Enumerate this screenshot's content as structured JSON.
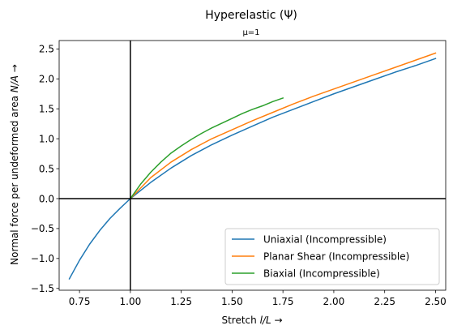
{
  "chart_data": {
    "type": "line",
    "title": "Hyperelastic (Ψ)",
    "subtitle": "μ=1",
    "xlabel_parts": [
      "Stretch ",
      "l/L",
      "  →"
    ],
    "ylabel_parts": [
      "Normal force per undeformed area ",
      "N/A",
      "  →"
    ],
    "xlim": [
      0.65,
      2.55
    ],
    "ylim": [
      -1.53,
      2.64
    ],
    "x_ticks": [
      0.75,
      1.0,
      1.25,
      1.5,
      1.75,
      2.0,
      2.25,
      2.5
    ],
    "x_tick_labels": [
      "0.75",
      "1.00",
      "1.25",
      "1.50",
      "1.75",
      "2.00",
      "2.25",
      "2.50"
    ],
    "y_ticks": [
      -1.5,
      -1.0,
      -0.5,
      0.0,
      0.5,
      1.0,
      1.5,
      2.0,
      2.5
    ],
    "y_tick_labels": [
      "−1.5",
      "−1.0",
      "−0.5",
      "0.0",
      "0.5",
      "1.0",
      "1.5",
      "2.0",
      "2.5"
    ],
    "grid": false,
    "legend_position": "bottom-right",
    "reference_lines": {
      "x": 1.0,
      "y": 0.0,
      "color": "#000000"
    },
    "series": [
      {
        "name": "Uniaxial (Incompressible)",
        "color": "#1f77b4",
        "x": [
          0.7,
          0.75,
          0.8,
          0.85,
          0.9,
          0.95,
          1.0,
          1.1,
          1.2,
          1.3,
          1.4,
          1.5,
          1.6,
          1.7,
          1.8,
          1.9,
          2.0,
          2.1,
          2.2,
          2.3,
          2.4,
          2.5
        ],
        "y": [
          -1.34,
          -1.03,
          -0.76,
          -0.53,
          -0.33,
          -0.16,
          0.0,
          0.27,
          0.51,
          0.72,
          0.9,
          1.06,
          1.21,
          1.36,
          1.49,
          1.62,
          1.75,
          1.87,
          1.99,
          2.11,
          2.22,
          2.34
        ]
      },
      {
        "name": "Planar Shear (Incompressible)",
        "color": "#ff7f0e",
        "x": [
          1.0,
          1.1,
          1.2,
          1.3,
          1.4,
          1.5,
          1.6,
          1.7,
          1.8,
          1.9,
          2.0,
          2.1,
          2.2,
          2.3,
          2.4,
          2.5
        ],
        "y": [
          0.0,
          0.35,
          0.61,
          0.82,
          1.0,
          1.15,
          1.3,
          1.44,
          1.58,
          1.71,
          1.83,
          1.95,
          2.07,
          2.19,
          2.31,
          2.43
        ]
      },
      {
        "name": "Biaxial (Incompressible)",
        "color": "#2ca02c",
        "x": [
          1.0,
          1.05,
          1.1,
          1.15,
          1.2,
          1.25,
          1.3,
          1.35,
          1.4,
          1.45,
          1.5,
          1.55,
          1.6,
          1.65,
          1.7,
          1.75
        ],
        "y": [
          0.0,
          0.24,
          0.44,
          0.61,
          0.76,
          0.88,
          0.99,
          1.09,
          1.18,
          1.26,
          1.34,
          1.42,
          1.49,
          1.55,
          1.62,
          1.68
        ]
      }
    ]
  }
}
